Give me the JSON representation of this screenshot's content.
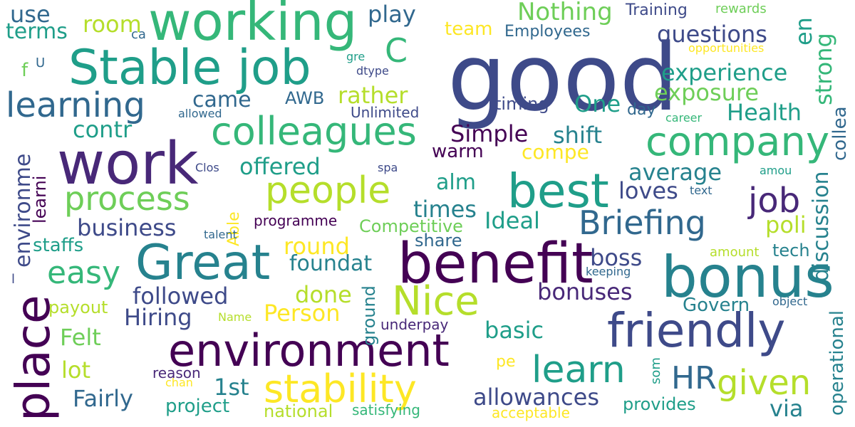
{
  "palette": {
    "darkPurple": "#440154",
    "purple": "#482878",
    "indigo": "#3e4a89",
    "blue": "#31688e",
    "teal": "#26828e",
    "green": "#1f9e89",
    "mint": "#35b779",
    "lime": "#6ece58",
    "yellowGreen": "#b5de2b",
    "yellow": "#fde725"
  },
  "words": [
    "good",
    "working",
    "Stable job",
    "work",
    "benefit",
    "bonus",
    "Great",
    "environment",
    "friendly",
    "place",
    "best",
    "colleagues",
    "company",
    "people",
    "learning",
    "learn",
    "stability",
    "Nice",
    "Briefing",
    "job",
    "given",
    "HR",
    "process",
    "easy",
    "use",
    "terms",
    "room",
    "play",
    "Nothing",
    "Training",
    "rewards",
    "ca",
    "team",
    "Employees",
    "questions",
    "en",
    "strong",
    "C",
    "f",
    "U",
    "gre",
    "dtype",
    "opportunities",
    "experience",
    "exposure",
    "rather",
    "came",
    "AWB",
    "One",
    "Health",
    "collea",
    "allowed",
    "Unlimited",
    "timing",
    "day",
    "career",
    "contr",
    "Simple",
    "shift",
    "environme",
    "learni",
    "discussion",
    "warm",
    "compe",
    "offered",
    "average",
    "Clos",
    "spa",
    "amou",
    "alm",
    "loves",
    "text",
    "times",
    "business",
    "Able",
    "poli",
    "talent",
    "programme",
    "Competitive",
    "Ideal",
    "staffs",
    "round",
    "share",
    "boss",
    "tech",
    "amount",
    "foundat",
    "keeping",
    "l",
    "followed",
    "bonuses",
    "done",
    "Person",
    "payout",
    "Hiring",
    "Govern",
    "object",
    "Name",
    "ground",
    "underpay",
    "basic",
    "Felt",
    "operational",
    "lot",
    "pe",
    "reason",
    "som",
    "chan",
    "1st",
    "Fairly",
    "allowances",
    "project",
    "provides",
    "via",
    "national",
    "satisfying",
    "acceptable"
  ]
}
